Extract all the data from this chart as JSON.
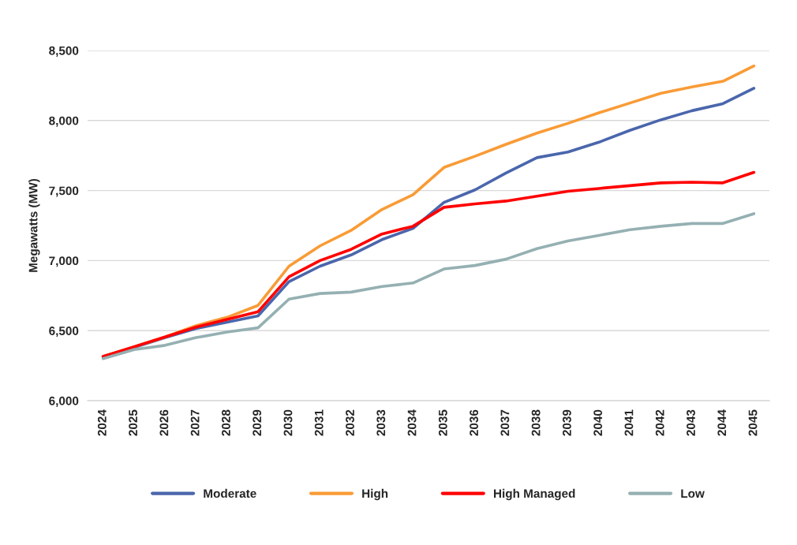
{
  "chart_data": {
    "type": "line",
    "ylabel": "Megawatts (MW)",
    "categories": [
      "2024",
      "2025",
      "2026",
      "2027",
      "2028",
      "2029",
      "2030",
      "2031",
      "2032",
      "2033",
      "2034",
      "2035",
      "2036",
      "2037",
      "2038",
      "2039",
      "2040",
      "2041",
      "2042",
      "2043",
      "2044",
      "2045"
    ],
    "series": [
      {
        "name": "Moderate",
        "color": "#4a66ac",
        "values": [
          6315,
          6380,
          6450,
          6515,
          6560,
          6605,
          6850,
          6960,
          7040,
          7150,
          7230,
          7415,
          7505,
          7625,
          7735,
          7775,
          7845,
          7930,
          8005,
          8070,
          8120,
          8230
        ]
      },
      {
        "name": "High",
        "color": "#f99b36",
        "values": [
          6315,
          6385,
          6455,
          6535,
          6595,
          6680,
          6960,
          7105,
          7215,
          7365,
          7470,
          7665,
          7745,
          7830,
          7910,
          7980,
          8055,
          8125,
          8195,
          8240,
          8280,
          8390
        ]
      },
      {
        "name": "High Managed",
        "color": "#ff0000",
        "values": [
          6315,
          6385,
          6455,
          6525,
          6580,
          6635,
          6885,
          7000,
          7080,
          7190,
          7245,
          7380,
          7405,
          7425,
          7460,
          7495,
          7515,
          7535,
          7555,
          7560,
          7555,
          7630
        ]
      },
      {
        "name": "Low",
        "color": "#95b0b2",
        "values": [
          6300,
          6365,
          6395,
          6450,
          6490,
          6520,
          6725,
          6765,
          6775,
          6815,
          6840,
          6940,
          6965,
          7010,
          7085,
          7140,
          7180,
          7220,
          7245,
          7265,
          7265,
          7335
        ]
      }
    ],
    "ylim": [
      6000,
      8500
    ],
    "yticks": [
      {
        "value": 6000,
        "label": "6,000"
      },
      {
        "value": 6500,
        "label": "6,500"
      },
      {
        "value": 7000,
        "label": "7,000"
      },
      {
        "value": 7500,
        "label": "7,500"
      },
      {
        "value": 8000,
        "label": "8,000"
      },
      {
        "value": 8500,
        "label": "8,500"
      }
    ],
    "grid": "y",
    "legend": "bottom",
    "line_style": "solid"
  }
}
